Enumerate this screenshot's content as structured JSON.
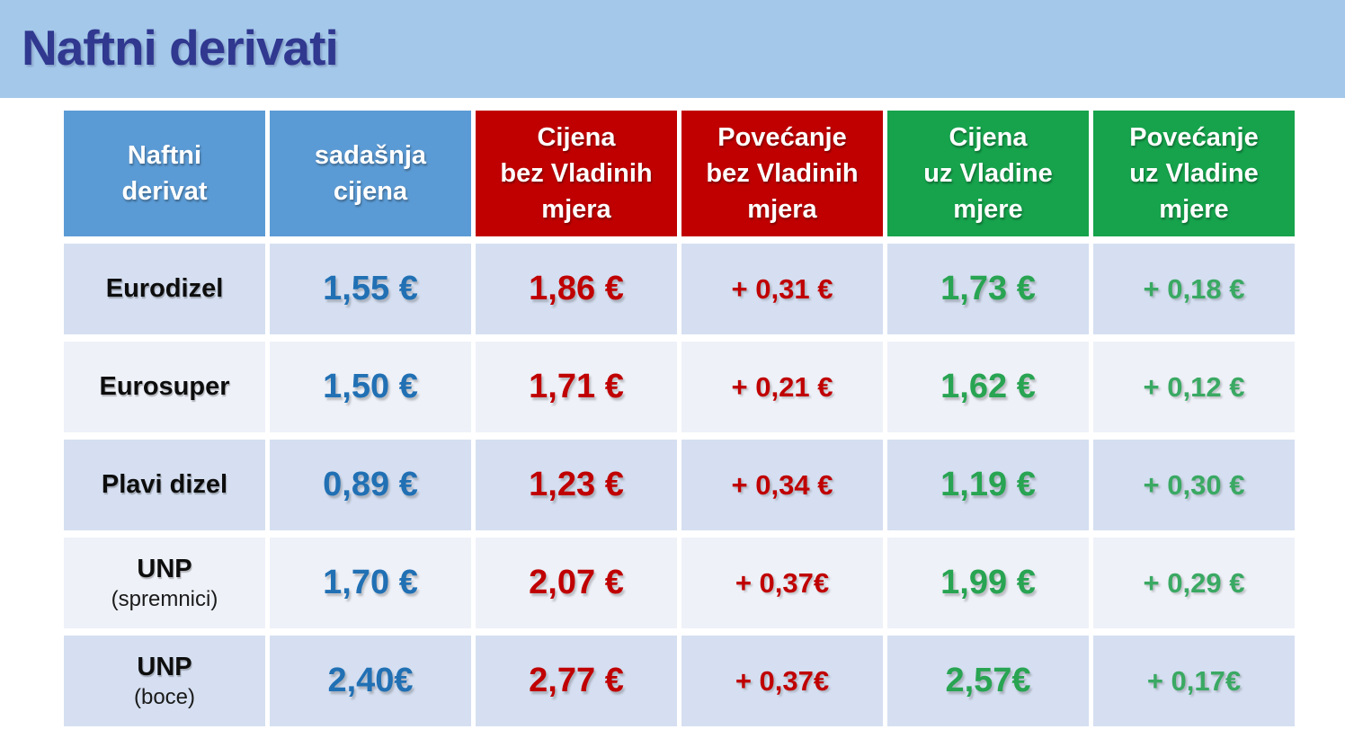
{
  "page": {
    "title": "Naftni derivati"
  },
  "colors": {
    "banner_bg": "#a4c8ea",
    "title_text": "#30388f",
    "header_blue": "#5b9bd5",
    "header_red": "#c00000",
    "header_green": "#16a34c",
    "row_dark_bg": "#d5dff1",
    "row_light_bg": "#eef1f8",
    "value_blue": "#2170b4",
    "value_red": "#c00000",
    "value_green": "#28a452",
    "increase_green": "#3aa963"
  },
  "table": {
    "headers": [
      "Naftni\nderivat",
      "sadašnja\ncijena",
      "Cijena\nbez Vladinih\nmjera",
      "Povećanje\nbez Vladinih\nmjera",
      "Cijena\nuz Vladine\nmjere",
      "Povećanje\nuz Vladine\nmjere"
    ],
    "rows": [
      {
        "name": "Eurodizel",
        "sub": "",
        "current_price": "1,55 €",
        "price_without_measures": "1,86 €",
        "increase_without_measures": "+ 0,31 €",
        "price_with_measures": "1,73 €",
        "increase_with_measures": "+ 0,18 €"
      },
      {
        "name": "Eurosuper",
        "sub": "",
        "current_price": "1,50 €",
        "price_without_measures": "1,71 €",
        "increase_without_measures": "+ 0,21 €",
        "price_with_measures": "1,62 €",
        "increase_with_measures": "+ 0,12 €"
      },
      {
        "name": "Plavi dizel",
        "sub": "",
        "current_price": "0,89 €",
        "price_without_measures": "1,23 €",
        "increase_without_measures": "+ 0,34 €",
        "price_with_measures": "1,19 €",
        "increase_with_measures": "+ 0,30 €"
      },
      {
        "name": "UNP",
        "sub": "(spremnici)",
        "current_price": "1,70 €",
        "price_without_measures": "2,07 €",
        "increase_without_measures": "+ 0,37€",
        "price_with_measures": "1,99 €",
        "increase_with_measures": "+ 0,29 €"
      },
      {
        "name": "UNP",
        "sub": "(boce)",
        "current_price": "2,40€",
        "price_without_measures": "2,77 €",
        "increase_without_measures": "+ 0,37€",
        "price_with_measures": "2,57€",
        "increase_with_measures": "+ 0,17€"
      }
    ]
  }
}
